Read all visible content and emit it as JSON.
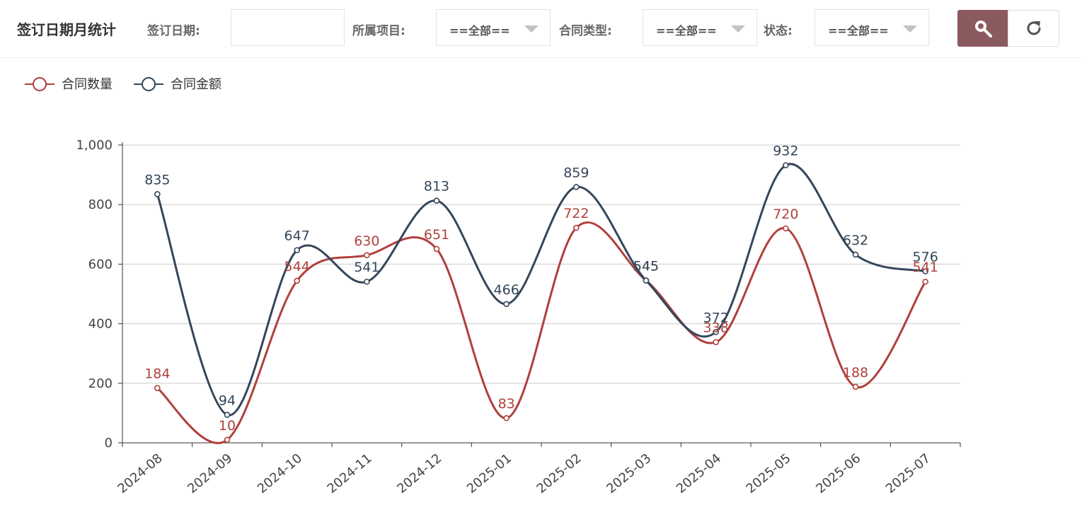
{
  "header": {
    "title": "签订日期月统计",
    "date_label": "签订日期:",
    "date_value": "",
    "project_label": "所属项目:",
    "project_value": "==全部==",
    "type_label": "合同类型:",
    "type_value": "==全部==",
    "status_label": "状态:",
    "status_value": "==全部=="
  },
  "colors": {
    "count": "#b0403c",
    "amount": "#35465a",
    "search_button": "#8b5a5f"
  },
  "icons": {
    "search": "search-icon",
    "refresh": "refresh-icon"
  },
  "chart_data": {
    "type": "line",
    "smooth": true,
    "categories": [
      "2024-08",
      "2024-09",
      "2024-10",
      "2024-11",
      "2024-12",
      "2025-01",
      "2025-02",
      "2025-03",
      "2025-04",
      "2025-05",
      "2025-06",
      "2025-07"
    ],
    "series": [
      {
        "name": "合同数量",
        "color": "#b0403c",
        "values": [
          184,
          10,
          544,
          630,
          651,
          83,
          722,
          545,
          338,
          720,
          188,
          541
        ]
      },
      {
        "name": "合同金额",
        "color": "#35465a",
        "values": [
          835,
          94,
          647,
          541,
          813,
          466,
          859,
          545,
          372,
          932,
          632,
          576
        ]
      }
    ],
    "ylim": [
      0,
      1000
    ],
    "yticks": [
      0,
      200,
      400,
      600,
      800,
      1000
    ],
    "ytick_labels": [
      "0",
      "200",
      "400",
      "600",
      "800",
      "1,000"
    ],
    "grid": true,
    "legend": "top-left"
  }
}
